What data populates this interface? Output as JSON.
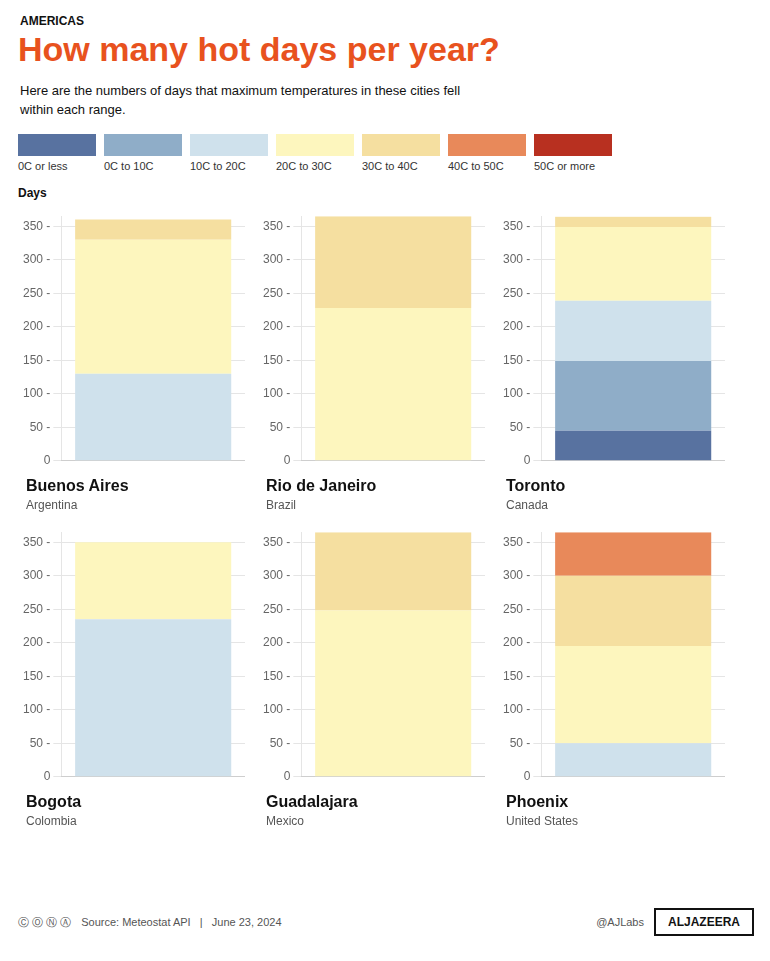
{
  "title": "How many hot days per year?",
  "subtitle": "Here are the numbers of days that maximum temperatures in these cities fell\nwithin each range.",
  "annotations": [
    "AMERICAS",
    "Days",
    "Ⓒ Ⓞ Ⓝ Ⓐ",
    "Source: Meteostat API   |   June 23, 2024",
    "@AJLabs",
    "ALJAZEERA"
  ],
  "legend": "top",
  "chart_data": [
    {
      "type": "bar",
      "stacked": true,
      "title": "Buenos Aires",
      "subtitle": "Argentina",
      "categories": [
        null
      ],
      "series": [
        {
          "name": "0C or less",
          "color": "#5872a0",
          "values": [
            0
          ]
        },
        {
          "name": "0C to 10C",
          "color": "#8fadc8",
          "values": [
            0
          ]
        },
        {
          "name": "10C to 20C",
          "color": "#cfe1ec",
          "values": [
            130
          ]
        },
        {
          "name": "20C to 30C",
          "color": "#fdf6be",
          "values": [
            200
          ]
        },
        {
          "name": "30C to 40C",
          "color": "#f5dfa0",
          "values": [
            30
          ]
        },
        {
          "name": "40C to 50C",
          "color": "#e8895a",
          "values": [
            0
          ]
        },
        {
          "name": "50C or more",
          "color": "#b83020",
          "values": [
            0
          ]
        }
      ],
      "ylim": [
        0,
        365
      ],
      "yticks": [
        0,
        {
          "value": 50,
          "label": "50 -"
        },
        {
          "value": 100,
          "label": "100 -"
        },
        {
          "value": 150,
          "label": "150 -"
        },
        {
          "value": 200,
          "label": "200 -"
        },
        {
          "value": 250,
          "label": "250 -"
        },
        {
          "value": 300,
          "label": "300 -"
        },
        {
          "value": 350,
          "label": "350 -"
        }
      ],
      "grid": true,
      "tick_labels": "y"
    },
    {
      "type": "bar",
      "stacked": true,
      "title": "Rio de Janeiro",
      "subtitle": "Brazil",
      "categories": [
        null
      ],
      "series": [
        {
          "name": "0C or less",
          "color": "#5872a0",
          "values": [
            0
          ]
        },
        {
          "name": "0C to 10C",
          "color": "#8fadc8",
          "values": [
            0
          ]
        },
        {
          "name": "10C to 20C",
          "color": "#cfe1ec",
          "values": [
            0
          ]
        },
        {
          "name": "20C to 30C",
          "color": "#fdf6be",
          "values": [
            228
          ]
        },
        {
          "name": "30C to 40C",
          "color": "#f5dfa0",
          "values": [
            137
          ]
        },
        {
          "name": "40C to 50C",
          "color": "#e8895a",
          "values": [
            0
          ]
        },
        {
          "name": "50C or more",
          "color": "#b83020",
          "values": [
            0
          ]
        }
      ],
      "ylim": [
        0,
        365
      ],
      "yticks": [
        0,
        {
          "value": 50,
          "label": "50 -"
        },
        {
          "value": 100,
          "label": "100 -"
        },
        {
          "value": 150,
          "label": "150 -"
        },
        {
          "value": 200,
          "label": "200 -"
        },
        {
          "value": 250,
          "label": "250 -"
        },
        {
          "value": 300,
          "label": "300 -"
        },
        {
          "value": 350,
          "label": "350 -"
        }
      ],
      "grid": true,
      "tick_labels": "y"
    },
    {
      "type": "bar",
      "stacked": true,
      "title": "Toronto",
      "subtitle": "Canada",
      "categories": [
        null
      ],
      "series": [
        {
          "name": "0C or less",
          "color": "#5872a0",
          "values": [
            45
          ]
        },
        {
          "name": "0C to 10C",
          "color": "#8fadc8",
          "values": [
            104
          ]
        },
        {
          "name": "10C to 20C",
          "color": "#cfe1ec",
          "values": [
            90
          ]
        },
        {
          "name": "20C to 30C",
          "color": "#fdf6be",
          "values": [
            110
          ]
        },
        {
          "name": "30C to 40C",
          "color": "#f5dfa0",
          "values": [
            15
          ]
        },
        {
          "name": "40C to 50C",
          "color": "#e8895a",
          "values": [
            0
          ]
        },
        {
          "name": "50C or more",
          "color": "#b83020",
          "values": [
            0
          ]
        }
      ],
      "ylim": [
        0,
        365
      ],
      "yticks": [
        0,
        {
          "value": 50,
          "label": "50 -"
        },
        {
          "value": 100,
          "label": "100 -"
        },
        {
          "value": 150,
          "label": "150 -"
        },
        {
          "value": 200,
          "label": "200 -"
        },
        {
          "value": 250,
          "label": "250 -"
        },
        {
          "value": 300,
          "label": "300 -"
        },
        {
          "value": 350,
          "label": "350 -"
        }
      ],
      "grid": true,
      "tick_labels": "y"
    },
    {
      "type": "bar",
      "stacked": true,
      "title": "Bogota",
      "subtitle": "Colombia",
      "categories": [
        null
      ],
      "series": [
        {
          "name": "0C or less",
          "color": "#5872a0",
          "values": [
            0
          ]
        },
        {
          "name": "0C to 10C",
          "color": "#8fadc8",
          "values": [
            0
          ]
        },
        {
          "name": "10C to 20C",
          "color": "#cfe1ec",
          "values": [
            235
          ]
        },
        {
          "name": "20C to 30C",
          "color": "#fdf6be",
          "values": [
            115
          ]
        },
        {
          "name": "30C to 40C",
          "color": "#f5dfa0",
          "values": [
            0
          ]
        },
        {
          "name": "40C to 50C",
          "color": "#e8895a",
          "values": [
            0
          ]
        },
        {
          "name": "50C or more",
          "color": "#b83020",
          "values": [
            0
          ]
        }
      ],
      "ylim": [
        0,
        365
      ],
      "yticks": [
        0,
        {
          "value": 50,
          "label": "50 -"
        },
        {
          "value": 100,
          "label": "100 -"
        },
        {
          "value": 150,
          "label": "150 -"
        },
        {
          "value": 200,
          "label": "200 -"
        },
        {
          "value": 250,
          "label": "250 -"
        },
        {
          "value": 300,
          "label": "300 -"
        },
        {
          "value": 350,
          "label": "350 -"
        }
      ],
      "grid": true,
      "tick_labels": "y"
    },
    {
      "type": "bar",
      "stacked": true,
      "title": "Guadalajara",
      "subtitle": "Mexico",
      "categories": [
        null
      ],
      "series": [
        {
          "name": "0C or less",
          "color": "#5872a0",
          "values": [
            0
          ]
        },
        {
          "name": "0C to 10C",
          "color": "#8fadc8",
          "values": [
            0
          ]
        },
        {
          "name": "10C to 20C",
          "color": "#cfe1ec",
          "values": [
            0
          ]
        },
        {
          "name": "20C to 30C",
          "color": "#fdf6be",
          "values": [
            248
          ]
        },
        {
          "name": "30C to 40C",
          "color": "#f5dfa0",
          "values": [
            117
          ]
        },
        {
          "name": "40C to 50C",
          "color": "#e8895a",
          "values": [
            0
          ]
        },
        {
          "name": "50C or more",
          "color": "#b83020",
          "values": [
            0
          ]
        }
      ],
      "ylim": [
        0,
        365
      ],
      "yticks": [
        0,
        {
          "value": 50,
          "label": "50 -"
        },
        {
          "value": 100,
          "label": "100 -"
        },
        {
          "value": 150,
          "label": "150 -"
        },
        {
          "value": 200,
          "label": "200 -"
        },
        {
          "value": 250,
          "label": "250 -"
        },
        {
          "value": 300,
          "label": "300 -"
        },
        {
          "value": 350,
          "label": "350 -"
        }
      ],
      "grid": true,
      "tick_labels": "y"
    },
    {
      "type": "bar",
      "stacked": true,
      "title": "Phoenix",
      "subtitle": "United States",
      "categories": [
        null
      ],
      "series": [
        {
          "name": "0C or less",
          "color": "#5872a0",
          "values": [
            0
          ]
        },
        {
          "name": "0C to 10C",
          "color": "#8fadc8",
          "values": [
            0
          ]
        },
        {
          "name": "10C to 20C",
          "color": "#cfe1ec",
          "values": [
            50
          ]
        },
        {
          "name": "20C to 30C",
          "color": "#fdf6be",
          "values": [
            145
          ]
        },
        {
          "name": "30C to 40C",
          "color": "#f5dfa0",
          "values": [
            105
          ]
        },
        {
          "name": "40C to 50C",
          "color": "#e8895a",
          "values": [
            65
          ]
        },
        {
          "name": "50C or more",
          "color": "#b83020",
          "values": [
            0
          ]
        }
      ],
      "ylim": [
        0,
        365
      ],
      "yticks": [
        0,
        {
          "value": 50,
          "label": "50 -"
        },
        {
          "value": 100,
          "label": "100 -"
        },
        {
          "value": 150,
          "label": "150 -"
        },
        {
          "value": 200,
          "label": "200 -"
        },
        {
          "value": 250,
          "label": "250 -"
        },
        {
          "value": 300,
          "label": "300 -"
        },
        {
          "value": 350,
          "label": "350 -"
        }
      ],
      "grid": true,
      "tick_labels": "y"
    }
  ]
}
